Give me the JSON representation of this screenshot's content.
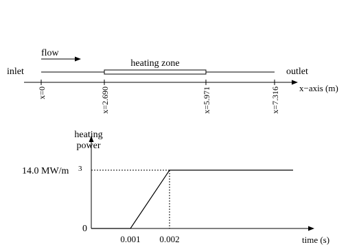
{
  "pipe": {
    "flow_label": "flow",
    "inlet_label": "inlet",
    "outlet_label": "outlet",
    "heating_zone_label": "heating zone",
    "axis_label": "x−axis (m)",
    "ticks": [
      {
        "label": "x=0"
      },
      {
        "label": "x=2.690"
      },
      {
        "label": "x=5.971"
      },
      {
        "label": "x=7.316"
      }
    ]
  },
  "power_plot": {
    "ylabel_line1": "heating",
    "ylabel_line2": "power",
    "xlabel": "time (s)",
    "y_value_label": "14.0 MW/m",
    "y_value_exponent": "3",
    "zero_label": "0",
    "x_tick_labels": [
      "0.001",
      "0.002"
    ]
  },
  "chart_data": {
    "type": "line",
    "title": "",
    "xlabel": "time (s)",
    "ylabel": "heating power",
    "series": [
      {
        "x": [
          0,
          0.001,
          0.002,
          0.005
        ],
        "y": [
          0,
          0,
          14.0,
          14.0
        ]
      }
    ],
    "units_y": "MW/m3"
  },
  "colors": {
    "ink": "#000000",
    "background": "#ffffff"
  }
}
